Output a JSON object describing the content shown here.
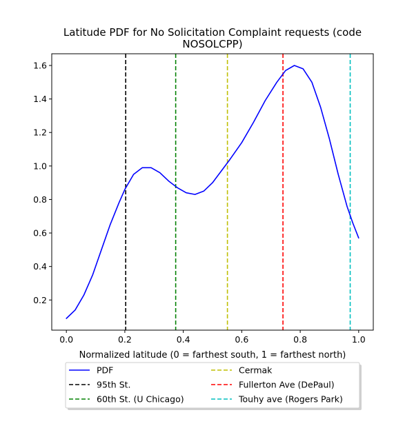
{
  "chart_data": {
    "type": "line",
    "title": "Latitude PDF for No Solicitation Complaint  requests (code",
    "title_line2": "NOSOLCPP)",
    "xlabel": "Normalized latitude (0 = farthest south, 1 = farthest north)",
    "ylabel": "",
    "xlim": [
      -0.05,
      1.05
    ],
    "ylim": [
      0.02,
      1.67
    ],
    "xticks": [
      0.0,
      0.2,
      0.4,
      0.6,
      0.8,
      1.0
    ],
    "xtick_labels": [
      "0.0",
      "0.2",
      "0.4",
      "0.6",
      "0.8",
      "1.0"
    ],
    "yticks": [
      0.2,
      0.4,
      0.6,
      0.8,
      1.0,
      1.2,
      1.4,
      1.6
    ],
    "ytick_labels": [
      "0.2",
      "0.4",
      "0.6",
      "0.8",
      "1.0",
      "1.2",
      "1.4",
      "1.6"
    ],
    "grid": false,
    "legend_position": "below the plot, two columns",
    "series": [
      {
        "name": "PDF",
        "color": "#0000ff",
        "style": "solid",
        "x": [
          0.0,
          0.03,
          0.06,
          0.09,
          0.12,
          0.15,
          0.18,
          0.2,
          0.23,
          0.26,
          0.29,
          0.32,
          0.35,
          0.38,
          0.41,
          0.44,
          0.47,
          0.5,
          0.53,
          0.56,
          0.6,
          0.64,
          0.68,
          0.72,
          0.75,
          0.78,
          0.81,
          0.84,
          0.87,
          0.9,
          0.93,
          0.96,
          0.98,
          1.0
        ],
        "y": [
          0.09,
          0.14,
          0.23,
          0.35,
          0.5,
          0.65,
          0.78,
          0.86,
          0.95,
          0.99,
          0.99,
          0.96,
          0.91,
          0.87,
          0.84,
          0.83,
          0.85,
          0.9,
          0.97,
          1.04,
          1.14,
          1.26,
          1.39,
          1.5,
          1.57,
          1.6,
          1.58,
          1.5,
          1.35,
          1.16,
          0.95,
          0.76,
          0.66,
          0.57
        ]
      }
    ],
    "vlines": [
      {
        "name": "95th St.",
        "x": 0.203,
        "color": "#000000"
      },
      {
        "name": "60th St. (U Chicago)",
        "x": 0.374,
        "color": "#008000"
      },
      {
        "name": "Cermak",
        "x": 0.551,
        "color": "#bfbf00"
      },
      {
        "name": "Fullerton Ave (DePaul)",
        "x": 0.741,
        "color": "#ff0000"
      },
      {
        "name": "Touhy ave (Rogers Park)",
        "x": 0.971,
        "color": "#00bfbf"
      }
    ]
  }
}
